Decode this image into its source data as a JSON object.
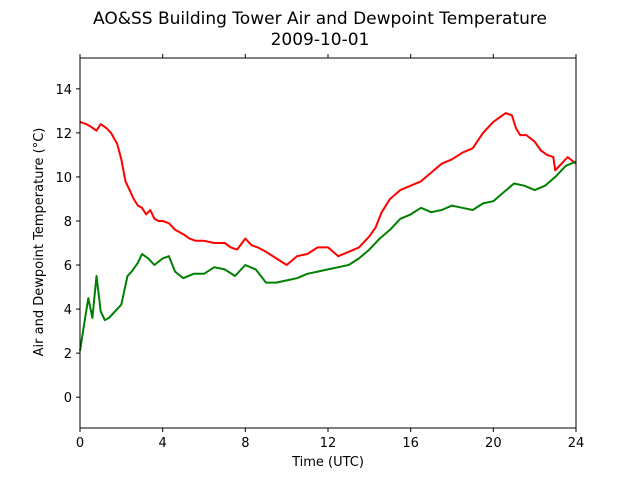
{
  "chart_data": {
    "type": "line",
    "title": "AO&SS Building Tower Air and Dewpoint Temperature",
    "subtitle": "2009-10-01",
    "xlabel": "Time (UTC)",
    "ylabel": "Air and Dewpoint Temperature (°C)",
    "xlim": [
      0,
      24
    ],
    "ylim": [
      -1.4,
      15.4
    ],
    "xticks": [
      "0",
      "4",
      "8",
      "12",
      "16",
      "20",
      "24"
    ],
    "yticks": [
      "0",
      "2",
      "4",
      "6",
      "8",
      "10",
      "12",
      "14"
    ],
    "grid": false,
    "series": [
      {
        "color": "#ff0000",
        "x": [
          0,
          0.3,
          0.5,
          0.8,
          1.0,
          1.3,
          1.5,
          1.8,
          2.0,
          2.2,
          2.4,
          2.6,
          2.8,
          3.0,
          3.2,
          3.4,
          3.6,
          3.8,
          4.0,
          4.3,
          4.6,
          5.0,
          5.3,
          5.6,
          6.0,
          6.5,
          7.0,
          7.3,
          7.6,
          8.0,
          8.3,
          8.6,
          9.0,
          9.5,
          10.0,
          10.5,
          11.0,
          11.5,
          12.0,
          12.5,
          13.0,
          13.5,
          14.0,
          14.3,
          14.6,
          15.0,
          15.5,
          16.0,
          16.5,
          17.0,
          17.5,
          18.0,
          18.5,
          19.0,
          19.5,
          20.0,
          20.3,
          20.6,
          20.9,
          21.1,
          21.3,
          21.6,
          22.0,
          22.3,
          22.6,
          22.9,
          23.0,
          23.1,
          23.3,
          23.6,
          24.0
        ],
        "values": [
          12.5,
          12.4,
          12.3,
          12.1,
          12.4,
          12.2,
          12.0,
          11.5,
          10.8,
          9.8,
          9.4,
          9.0,
          8.7,
          8.6,
          8.3,
          8.5,
          8.1,
          8.0,
          8.0,
          7.9,
          7.6,
          7.4,
          7.2,
          7.1,
          7.1,
          7.0,
          7.0,
          6.8,
          6.7,
          7.2,
          6.9,
          6.8,
          6.6,
          6.3,
          6.0,
          6.4,
          6.5,
          6.8,
          6.8,
          6.4,
          6.6,
          6.8,
          7.3,
          7.7,
          8.4,
          9.0,
          9.4,
          9.6,
          9.8,
          10.2,
          10.6,
          10.8,
          11.1,
          11.3,
          12.0,
          12.5,
          12.7,
          12.9,
          12.8,
          12.2,
          11.9,
          11.9,
          11.6,
          11.2,
          11.0,
          10.9,
          10.3,
          10.4,
          10.6,
          10.9,
          10.6
        ]
      },
      {
        "color": "#008000",
        "x": [
          0,
          0.2,
          0.4,
          0.6,
          0.8,
          1.0,
          1.2,
          1.4,
          1.6,
          1.8,
          2.0,
          2.3,
          2.5,
          2.8,
          3.0,
          3.3,
          3.6,
          4.0,
          4.3,
          4.6,
          5.0,
          5.5,
          6.0,
          6.5,
          7.0,
          7.5,
          8.0,
          8.5,
          9.0,
          9.5,
          10.0,
          10.5,
          11.0,
          11.5,
          12.0,
          12.5,
          13.0,
          13.5,
          14.0,
          14.5,
          15.0,
          15.5,
          16.0,
          16.5,
          17.0,
          17.5,
          18.0,
          18.5,
          19.0,
          19.5,
          20.0,
          20.5,
          21.0,
          21.5,
          22.0,
          22.5,
          23.0,
          23.5,
          24.0
        ],
        "values": [
          2.1,
          3.3,
          4.5,
          3.6,
          5.5,
          3.9,
          3.5,
          3.6,
          3.8,
          4.0,
          4.2,
          5.5,
          5.7,
          6.1,
          6.5,
          6.3,
          6.0,
          6.3,
          6.4,
          5.7,
          5.4,
          5.6,
          5.6,
          5.9,
          5.8,
          5.5,
          6.0,
          5.8,
          5.2,
          5.2,
          5.3,
          5.4,
          5.6,
          5.7,
          5.8,
          5.9,
          6.0,
          6.3,
          6.7,
          7.2,
          7.6,
          8.1,
          8.3,
          8.6,
          8.4,
          8.5,
          8.7,
          8.6,
          8.5,
          8.8,
          8.9,
          9.3,
          9.7,
          9.6,
          9.4,
          9.6,
          10.0,
          10.5,
          10.7
        ]
      }
    ]
  }
}
